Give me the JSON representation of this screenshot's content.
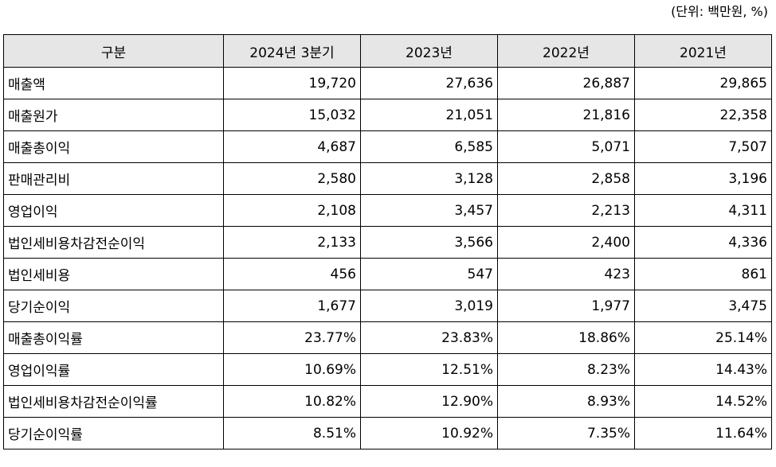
{
  "unit_note": "(단위: 백만원, %)",
  "table": {
    "headers": [
      "구분",
      "2024년 3분기",
      "2023년",
      "2022년",
      "2021년"
    ],
    "rows": [
      {
        "label": "매출액",
        "values": [
          "19,720",
          "27,636",
          "26,887",
          "29,865"
        ]
      },
      {
        "label": "매출원가",
        "values": [
          "15,032",
          "21,051",
          "21,816",
          "22,358"
        ]
      },
      {
        "label": "매출총이익",
        "values": [
          "4,687",
          "6,585",
          "5,071",
          "7,507"
        ]
      },
      {
        "label": "판매관리비",
        "values": [
          "2,580",
          "3,128",
          "2,858",
          "3,196"
        ]
      },
      {
        "label": "영업이익",
        "values": [
          "2,108",
          "3,457",
          "2,213",
          "4,311"
        ]
      },
      {
        "label": "법인세비용차감전순이익",
        "values": [
          "2,133",
          "3,566",
          "2,400",
          "4,336"
        ]
      },
      {
        "label": "법인세비용",
        "values": [
          "456",
          "547",
          "423",
          "861"
        ]
      },
      {
        "label": "당기순이익",
        "values": [
          "1,677",
          "3,019",
          "1,977",
          "3,475"
        ]
      },
      {
        "label": "매출총이익률",
        "values": [
          "23.77%",
          "23.83%",
          "18.86%",
          "25.14%"
        ]
      },
      {
        "label": "영업이익률",
        "values": [
          "10.69%",
          "12.51%",
          "8.23%",
          "14.43%"
        ]
      },
      {
        "label": "법인세비용차감전순이익률",
        "values": [
          "10.82%",
          "12.90%",
          "8.93%",
          "14.52%"
        ]
      },
      {
        "label": "당기순이익률",
        "values": [
          "8.51%",
          "10.92%",
          "7.35%",
          "11.64%"
        ]
      }
    ]
  }
}
